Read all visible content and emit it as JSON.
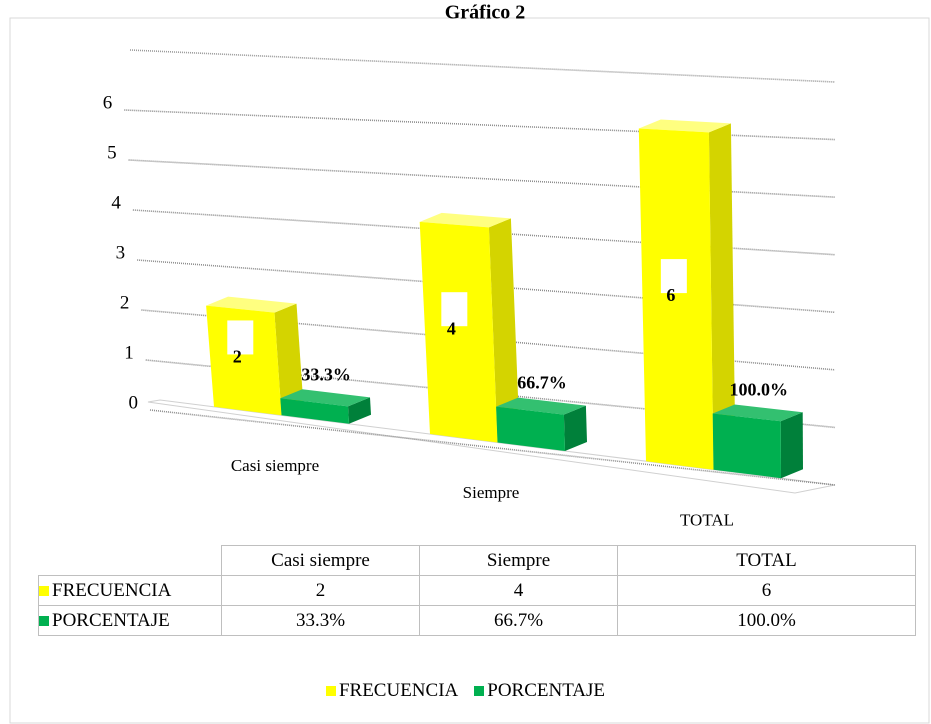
{
  "chart_data": {
    "type": "bar3d",
    "title": "Gráfico 2",
    "categories": [
      "Casi siempre",
      "Siempre",
      "TOTAL"
    ],
    "series": [
      {
        "name": "FRECUENCIA",
        "color": "#ffff00",
        "values": [
          2,
          4,
          6
        ]
      },
      {
        "name": "PORCENTAJE",
        "color": "#00b050",
        "values": [
          0.333,
          0.667,
          1.0
        ],
        "value_labels": [
          "33.3%",
          "66.7%",
          "100.0%"
        ]
      }
    ],
    "ylim": [
      0,
      7
    ],
    "yticks": [
      0,
      1,
      2,
      3,
      4,
      5,
      6
    ],
    "grid": true,
    "legend": "bottom",
    "data_table": true
  }
}
